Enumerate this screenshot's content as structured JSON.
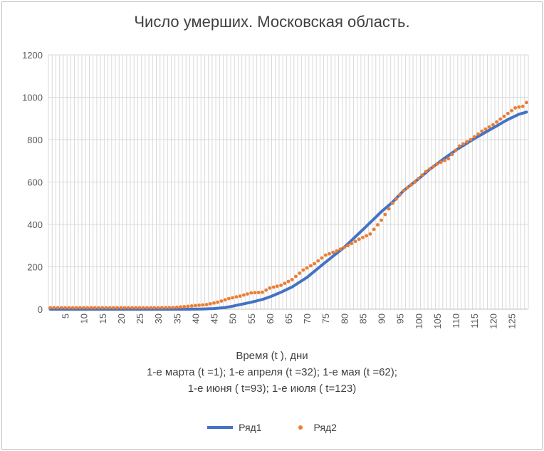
{
  "chart_data": {
    "type": "line",
    "title": "Число умерших.  Московская область.",
    "xlabel_lines": [
      "Время (t ), дни",
      "1-е марта (t =1); 1-е апреля (t =32); 1-е мая (t =62);",
      "1-е июня  ( t=93); 1-е июля  ( t=123)"
    ],
    "xlim": [
      1,
      129
    ],
    "ylim": [
      0,
      1200
    ],
    "yticks": [
      0,
      200,
      400,
      600,
      800,
      1000,
      1200
    ],
    "xtick_labels": [
      "5",
      "10",
      "15",
      "20",
      "25",
      "30",
      "35",
      "40",
      "45",
      "50",
      "55",
      "60",
      "65",
      "70",
      "75",
      "80",
      "85",
      "90",
      "95",
      "100",
      "105",
      "110",
      "115",
      "120",
      "125"
    ],
    "xtick_values": [
      5,
      10,
      15,
      20,
      25,
      30,
      35,
      40,
      45,
      50,
      55,
      60,
      65,
      70,
      75,
      80,
      85,
      90,
      95,
      100,
      105,
      110,
      115,
      120,
      125
    ],
    "grid": true,
    "legend_position": "bottom",
    "series": [
      {
        "name": "Ряд1",
        "style": "line",
        "color": "#4472c4",
        "points": [
          [
            1,
            0
          ],
          [
            38,
            0
          ],
          [
            42,
            1
          ],
          [
            45,
            3
          ],
          [
            48,
            8
          ],
          [
            50,
            14
          ],
          [
            52,
            22
          ],
          [
            55,
            33
          ],
          [
            58,
            46
          ],
          [
            60,
            58
          ],
          [
            63,
            80
          ],
          [
            66,
            105
          ],
          [
            70,
            150
          ],
          [
            75,
            222
          ],
          [
            80,
            292
          ],
          [
            85,
            375
          ],
          [
            90,
            460
          ],
          [
            93,
            505
          ],
          [
            96,
            560
          ],
          [
            100,
            615
          ],
          [
            103,
            660
          ],
          [
            106,
            700
          ],
          [
            110,
            750
          ],
          [
            115,
            805
          ],
          [
            120,
            855
          ],
          [
            124,
            895
          ],
          [
            127,
            920
          ],
          [
            129,
            930
          ]
        ]
      },
      {
        "name": "Ряд2",
        "style": "scatter",
        "color": "#ed7d31",
        "points": [
          [
            1,
            7
          ],
          [
            30,
            7
          ],
          [
            34,
            8
          ],
          [
            37,
            12
          ],
          [
            40,
            17
          ],
          [
            43,
            22
          ],
          [
            46,
            33
          ],
          [
            49,
            50
          ],
          [
            52,
            62
          ],
          [
            55,
            77
          ],
          [
            58,
            80
          ],
          [
            60,
            100
          ],
          [
            63,
            113
          ],
          [
            66,
            140
          ],
          [
            69,
            185
          ],
          [
            72,
            215
          ],
          [
            75,
            255
          ],
          [
            78,
            275
          ],
          [
            81,
            300
          ],
          [
            84,
            330
          ],
          [
            87,
            355
          ],
          [
            90,
            420
          ],
          [
            93,
            500
          ],
          [
            96,
            560
          ],
          [
            99,
            600
          ],
          [
            102,
            650
          ],
          [
            105,
            685
          ],
          [
            108,
            710
          ],
          [
            111,
            770
          ],
          [
            114,
            800
          ],
          [
            117,
            840
          ],
          [
            120,
            870
          ],
          [
            123,
            910
          ],
          [
            126,
            950
          ],
          [
            128,
            957
          ],
          [
            129,
            975
          ]
        ]
      }
    ]
  }
}
